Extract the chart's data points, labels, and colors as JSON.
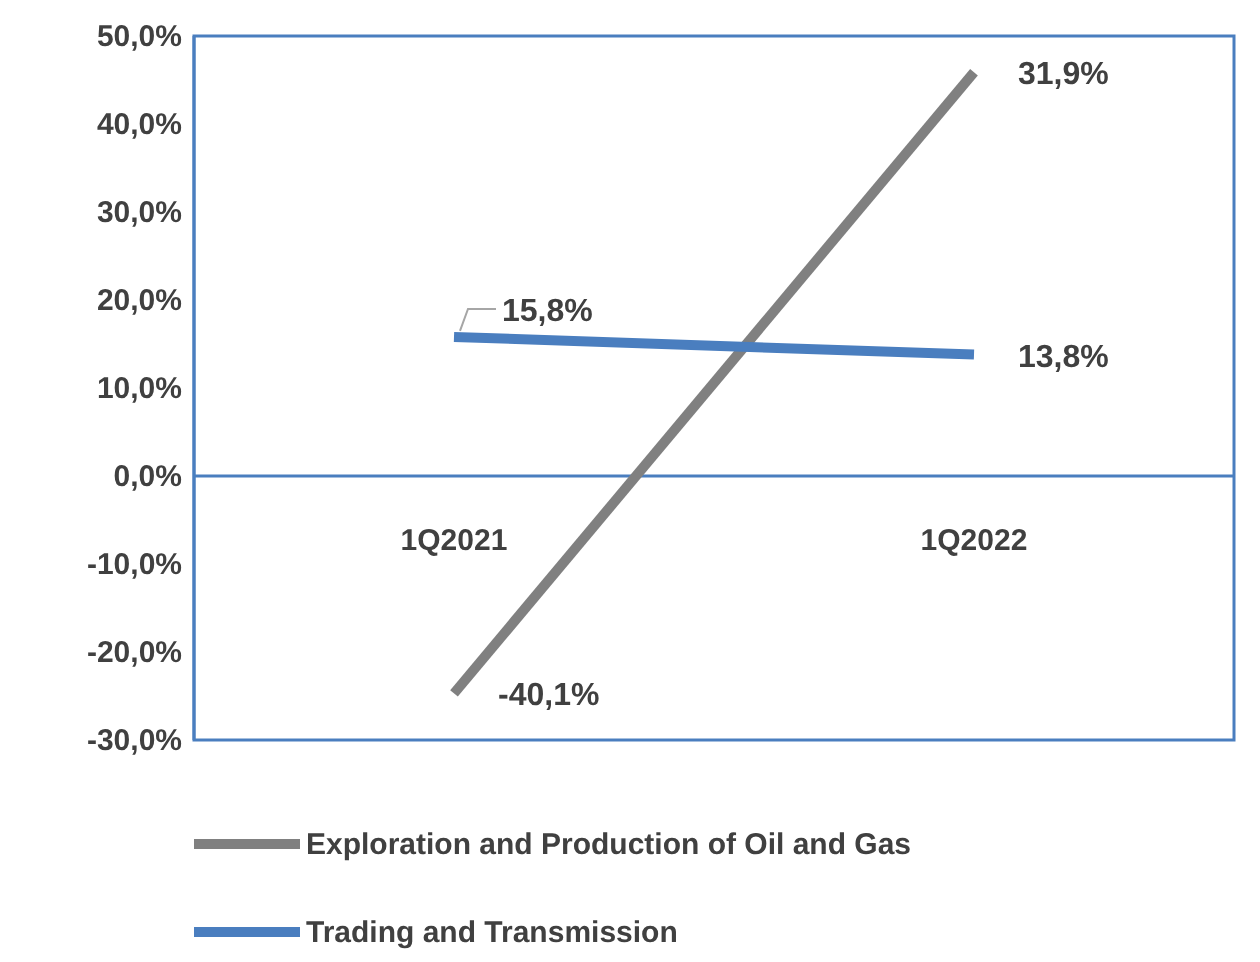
{
  "chart_data": {
    "type": "line",
    "categories": [
      "1Q2021",
      "1Q2022"
    ],
    "series": [
      {
        "name": "Exploration and Production of Oil and Gas",
        "color": "#808080",
        "axis": "y2",
        "values": [
          -40.1,
          31.9
        ],
        "value_labels": [
          "-40,1%",
          "31,9%"
        ]
      },
      {
        "name": "Trading and Transmission",
        "color": "#4a7ebf",
        "values": [
          15.8,
          13.8
        ],
        "value_labels": [
          "15,8%",
          "13,8%"
        ]
      }
    ],
    "ylim": [
      -30,
      50
    ],
    "yticks": [
      {
        "value": -30,
        "label": "-30,0%"
      },
      {
        "value": -20,
        "label": "-20,0%"
      },
      {
        "value": -10,
        "label": "-10,0%"
      },
      {
        "value": 0,
        "label": "0,0%"
      },
      {
        "value": 10,
        "label": "10,0%"
      },
      {
        "value": 20,
        "label": "20,0%"
      },
      {
        "value": 30,
        "label": "30,0%"
      },
      {
        "value": 40,
        "label": "40,0%"
      },
      {
        "value": 50,
        "label": "50,0%"
      }
    ],
    "y2lim": [
      -45.5,
      36.1
    ],
    "grid": false,
    "legend": "bottom",
    "marker": "none",
    "line_style": "solid"
  }
}
